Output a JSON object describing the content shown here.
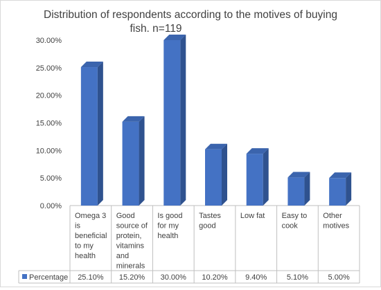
{
  "chart_data": {
    "type": "bar",
    "title_lines": [
      "Distribution of respondents according to the motives of buying",
      "fish. n=119"
    ],
    "categories": [
      [
        "Omega 3",
        "is",
        "beneficial",
        "to my",
        "health"
      ],
      [
        "Good",
        "source of",
        "protein,",
        "vitamins",
        "and",
        "minerals"
      ],
      [
        "Is good",
        "for my",
        "health"
      ],
      [
        "Tastes",
        "good"
      ],
      [
        "Low fat"
      ],
      [
        "Easy to",
        "cook"
      ],
      [
        "Other",
        "motives"
      ]
    ],
    "series": [
      {
        "name": "Percentage",
        "values": [
          25.1,
          15.2,
          30.0,
          10.2,
          9.4,
          5.1,
          5.0
        ],
        "labels": [
          "25.10%",
          "15.20%",
          "30.00%",
          "10.20%",
          "9.40%",
          "5.10%",
          "5.00%"
        ]
      }
    ],
    "ylim": [
      0,
      30
    ],
    "yticks": [
      "0.00%",
      "5.00%",
      "10.00%",
      "15.00%",
      "20.00%",
      "25.00%",
      "30.00%"
    ],
    "ytick_values": [
      0,
      5,
      10,
      15,
      20,
      25,
      30
    ],
    "grid": false,
    "legend": "data-table",
    "colors": {
      "front": "#4472C4",
      "side": "#2F528F",
      "top": "#3B64AD",
      "axis": "#bfbfbf"
    }
  }
}
